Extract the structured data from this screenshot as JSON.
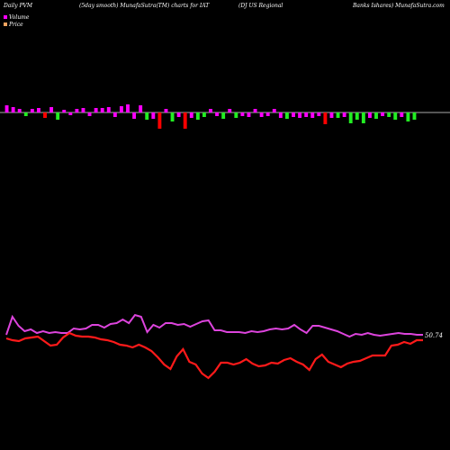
{
  "header": {
    "left": "Daily PVM",
    "mid1": "(5day smooth) MunafaSutra(TM) charts for IAT",
    "mid2": "(DJ US Regional",
    "right": "Banks Ishares) MunafaSutra.com"
  },
  "legend": [
    {
      "label": "Volume",
      "color": "#ff00ff"
    },
    {
      "label": "Price",
      "color": "#f4a460"
    }
  ],
  "colors": {
    "up": "#ff00ff",
    "down": "#ff0000",
    "green": "#22ee22",
    "price": "#ff1a1a",
    "pvm": "#dd44dd",
    "baseline": "#aaaaaa",
    "label": "#ffffff"
  },
  "last_price_label": "50.74",
  "chart_data": {
    "type": "line",
    "volume_bars": [
      {
        "v": 8,
        "c": "up"
      },
      {
        "v": 6,
        "c": "up"
      },
      {
        "v": 4,
        "c": "up"
      },
      {
        "v": -4,
        "c": "green"
      },
      {
        "v": 4,
        "c": "up"
      },
      {
        "v": 5,
        "c": "up"
      },
      {
        "v": -6,
        "c": "down"
      },
      {
        "v": 6,
        "c": "up"
      },
      {
        "v": -8,
        "c": "green"
      },
      {
        "v": 3,
        "c": "up"
      },
      {
        "v": -3,
        "c": "up"
      },
      {
        "v": 4,
        "c": "up"
      },
      {
        "v": 5,
        "c": "up"
      },
      {
        "v": -4,
        "c": "up"
      },
      {
        "v": 5,
        "c": "up"
      },
      {
        "v": 5,
        "c": "up"
      },
      {
        "v": 6,
        "c": "up"
      },
      {
        "v": -5,
        "c": "up"
      },
      {
        "v": 7,
        "c": "up"
      },
      {
        "v": 9,
        "c": "up"
      },
      {
        "v": -7,
        "c": "up"
      },
      {
        "v": 8,
        "c": "up"
      },
      {
        "v": -8,
        "c": "green"
      },
      {
        "v": -7,
        "c": "up"
      },
      {
        "v": -18,
        "c": "down"
      },
      {
        "v": 4,
        "c": "up"
      },
      {
        "v": -10,
        "c": "green"
      },
      {
        "v": -5,
        "c": "up"
      },
      {
        "v": -18,
        "c": "down"
      },
      {
        "v": -6,
        "c": "up"
      },
      {
        "v": -8,
        "c": "green"
      },
      {
        "v": -5,
        "c": "green"
      },
      {
        "v": 4,
        "c": "up"
      },
      {
        "v": -4,
        "c": "up"
      },
      {
        "v": -7,
        "c": "green"
      },
      {
        "v": 4,
        "c": "up"
      },
      {
        "v": -6,
        "c": "green"
      },
      {
        "v": -4,
        "c": "up"
      },
      {
        "v": -5,
        "c": "up"
      },
      {
        "v": 4,
        "c": "up"
      },
      {
        "v": -5,
        "c": "up"
      },
      {
        "v": -4,
        "c": "up"
      },
      {
        "v": 4,
        "c": "up"
      },
      {
        "v": -6,
        "c": "up"
      },
      {
        "v": -7,
        "c": "green"
      },
      {
        "v": -5,
        "c": "up"
      },
      {
        "v": -6,
        "c": "up"
      },
      {
        "v": -5,
        "c": "up"
      },
      {
        "v": -6,
        "c": "up"
      },
      {
        "v": -4,
        "c": "up"
      },
      {
        "v": -13,
        "c": "down"
      },
      {
        "v": -6,
        "c": "up"
      },
      {
        "v": -6,
        "c": "green"
      },
      {
        "v": -5,
        "c": "up"
      },
      {
        "v": -12,
        "c": "green"
      },
      {
        "v": -8,
        "c": "green"
      },
      {
        "v": -12,
        "c": "green"
      },
      {
        "v": -6,
        "c": "up"
      },
      {
        "v": -7,
        "c": "green"
      },
      {
        "v": -4,
        "c": "up"
      },
      {
        "v": -5,
        "c": "green"
      },
      {
        "v": -8,
        "c": "green"
      },
      {
        "v": -5,
        "c": "up"
      },
      {
        "v": -10,
        "c": "green"
      },
      {
        "v": -8,
        "c": "green"
      }
    ],
    "pvm_series": [
      372,
      352,
      362,
      368,
      366,
      370,
      368,
      370,
      369,
      370,
      370,
      365,
      366,
      365,
      361,
      361,
      364,
      360,
      359,
      355,
      359,
      350,
      352,
      369,
      361,
      364,
      359,
      359,
      361,
      360,
      363,
      360,
      357,
      356,
      367,
      367,
      369,
      369,
      369,
      370,
      368,
      369,
      368,
      366,
      365,
      366,
      365,
      361,
      366,
      370,
      362,
      362,
      364,
      366,
      368,
      371,
      374,
      371,
      372,
      370,
      372,
      373,
      372,
      371,
      370,
      371,
      371,
      372,
      372
    ],
    "price_series": [
      376,
      378,
      379,
      376,
      375,
      374,
      379,
      384,
      383,
      375,
      370,
      373,
      374,
      374,
      375,
      377,
      378,
      380,
      383,
      384,
      386,
      383,
      386,
      390,
      397,
      405,
      410,
      396,
      388,
      402,
      405,
      415,
      420,
      413,
      403,
      403,
      405,
      403,
      399,
      404,
      407,
      406,
      403,
      404,
      400,
      398,
      402,
      405,
      411,
      399,
      394,
      402,
      405,
      408,
      404,
      402,
      401,
      398,
      395,
      395,
      395,
      384,
      383,
      380,
      382,
      378,
      378
    ],
    "ylim": [
      340,
      440
    ],
    "xlabel": "",
    "ylabel": "",
    "grid": false
  }
}
